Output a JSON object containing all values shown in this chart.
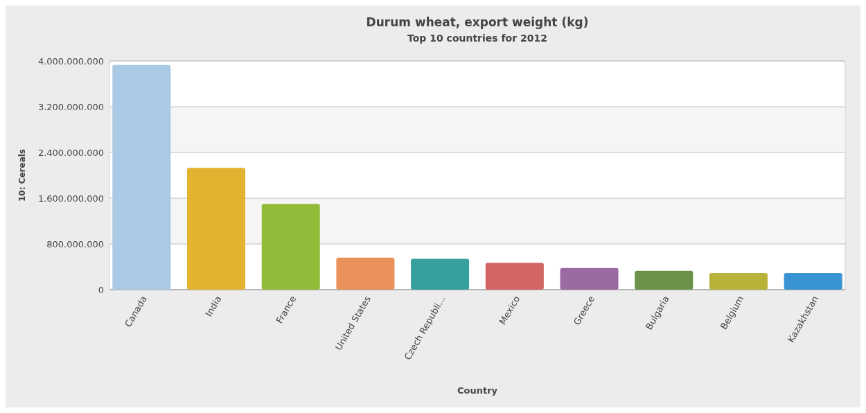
{
  "chart_data": {
    "type": "bar",
    "title": "Durum wheat, export weight (kg)",
    "subtitle": "Top 10 countries for 2012",
    "xlabel": "Country",
    "ylabel": "10: Cereals",
    "categories": [
      "Canada",
      "India",
      "France",
      "United States",
      "Czech Republi...",
      "Mexico",
      "Greece",
      "Bulgaria",
      "Belgium",
      "Kazakhstan"
    ],
    "values": [
      3930000000,
      2130000000,
      1500000000,
      560000000,
      540000000,
      470000000,
      380000000,
      330000000,
      290000000,
      290000000
    ],
    "colors": [
      "#a9c9e4",
      "#e3b22e",
      "#92bb3a",
      "#e9925c",
      "#36a09e",
      "#d26464",
      "#9c6aa2",
      "#6d9148",
      "#b9b23a",
      "#3a94d4"
    ],
    "ylim": [
      0,
      4000000000
    ],
    "yticks": [
      {
        "value": 0,
        "label": "0"
      },
      {
        "value": 800000000,
        "label": "800.000.000"
      },
      {
        "value": 1600000000,
        "label": "1.600.000.000"
      },
      {
        "value": 2400000000,
        "label": "2.400.000.000"
      },
      {
        "value": 3200000000,
        "label": "3.200.000.000"
      },
      {
        "value": 4000000000,
        "label": "4.000.000.000"
      }
    ],
    "grid": "y"
  }
}
